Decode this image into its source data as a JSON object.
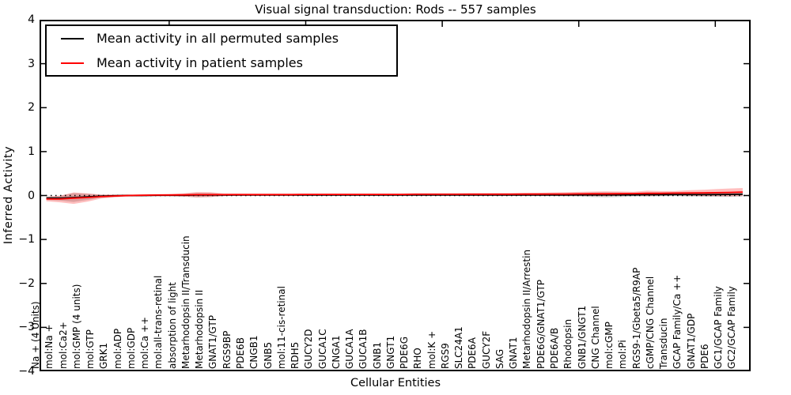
{
  "title": "Visual signal transduction: Rods -- 557 samples",
  "axes": {
    "ylabel": "Inferred Activity",
    "xlabel": "Cellular Entities",
    "yticks": [
      "4",
      "3",
      "2",
      "1",
      "0",
      "−1",
      "−2",
      "−3",
      "−4"
    ],
    "ylim": [
      -4,
      4
    ]
  },
  "legend": {
    "items": [
      {
        "label": "Mean activity in all permuted samples",
        "color": "#000000"
      },
      {
        "label": "Mean activity in patient samples",
        "color": "#ff0000"
      }
    ],
    "position": "upper left"
  },
  "colors": {
    "permuted_line": "#000000",
    "patient_line": "#ff0000",
    "permuted_band": "rgba(128,128,128,0.35)",
    "patient_band": "rgba(255,0,0,0.25)",
    "zero_line": "#000000",
    "background": "#ffffff"
  },
  "chart_data": {
    "type": "line",
    "title": "Visual signal transduction: Rods -- 557 samples",
    "xlabel": "Cellular Entities",
    "ylabel": "Inferred Activity",
    "ylim": [
      -4,
      4
    ],
    "grid": false,
    "zero_line_style": "dotted",
    "legend_position": "upper left",
    "categories": [
      "Na + (4 Units)",
      "mol:Na +",
      "mol:Ca2+",
      "mol:GMP (4 units)",
      "mol:GTP",
      "GRK1",
      "mol:ADP",
      "mol:GDP",
      "mol:Ca ++",
      "mol:all-trans-retinal",
      "absorption of light",
      "Metarhodopsin II/Transducin",
      "Metarhodopsin II",
      "GNAT1/GTP",
      "RGS9BP",
      "PDE6B",
      "CNGB1",
      "GNB5",
      "mol:11-cis-retinal",
      "RDH5",
      "GUCY2D",
      "GUCA1C",
      "CNGA1",
      "GUCA1A",
      "GUCA1B",
      "GNB1",
      "GNGT1",
      "PDE6G",
      "RHO",
      "mol:K +",
      "RGS9",
      "SLC24A1",
      "PDE6A",
      "GUCY2F",
      "SAG",
      "GNAT1",
      "Metarhodopsin II/Arrestin",
      "PDE6G/GNAT1/GTP",
      "PDE6A/B",
      "Rhodopsin",
      "GNB1/GNGT1",
      "CNG Channel",
      "mol:cGMP",
      "mol:Pi",
      "RGS9-1/Gbeta5/R9AP",
      "cGMP/CNG Channel",
      "Transducin",
      "GCAP Family/Ca ++",
      "GNAT1/GDP",
      "PDE6",
      "GC1/GCAP Family",
      "GC2/GCAP Family"
    ],
    "series": [
      {
        "name": "Mean activity in all permuted samples",
        "color": "#000000",
        "band_color": "rgba(128,128,128,0.35)",
        "values": [
          -0.06,
          -0.06,
          -0.045,
          -0.03,
          -0.015,
          -0.005,
          0,
          0,
          0.005,
          0.005,
          0.005,
          0.01,
          0.01,
          0.01,
          0.01,
          0.01,
          0.01,
          0.01,
          0.01,
          0.01,
          0.01,
          0.01,
          0.01,
          0.01,
          0.01,
          0.01,
          0.01,
          0.01,
          0.01,
          0.01,
          0.01,
          0.01,
          0.01,
          0.01,
          0.01,
          0.01,
          0.012,
          0.012,
          0.012,
          0.015,
          0.015,
          0.015,
          0.015,
          0.015,
          0.018,
          0.018,
          0.02,
          0.02,
          0.02,
          0.022,
          0.025,
          0.028
        ],
        "band_halfwidth": [
          0.04,
          0.055,
          0.1,
          0.07,
          0.035,
          0.025,
          0.02,
          0.02,
          0.02,
          0.02,
          0.03,
          0.05,
          0.045,
          0.025,
          0.018,
          0.015,
          0.015,
          0.015,
          0.015,
          0.015,
          0.015,
          0.015,
          0.015,
          0.015,
          0.015,
          0.015,
          0.015,
          0.015,
          0.015,
          0.015,
          0.015,
          0.015,
          0.015,
          0.018,
          0.018,
          0.02,
          0.025,
          0.025,
          0.03,
          0.035,
          0.05,
          0.055,
          0.05,
          0.035,
          0.04,
          0.035,
          0.03,
          0.04,
          0.045,
          0.05,
          0.055,
          0.05
        ]
      },
      {
        "name": "Mean activity in patient samples",
        "color": "#ff0000",
        "band_color": "rgba(255,0,0,0.25)",
        "values": [
          -0.08,
          -0.08,
          -0.06,
          -0.045,
          -0.025,
          -0.01,
          0,
          0.005,
          0.01,
          0.012,
          0.015,
          0.02,
          0.02,
          0.02,
          0.022,
          0.022,
          0.022,
          0.022,
          0.022,
          0.025,
          0.025,
          0.025,
          0.025,
          0.025,
          0.025,
          0.025,
          0.025,
          0.028,
          0.028,
          0.028,
          0.028,
          0.03,
          0.03,
          0.03,
          0.03,
          0.032,
          0.032,
          0.035,
          0.035,
          0.038,
          0.04,
          0.04,
          0.042,
          0.045,
          0.05,
          0.05,
          0.055,
          0.058,
          0.06,
          0.065,
          0.07,
          0.08
        ],
        "band_halfwidth": [
          0.05,
          0.075,
          0.13,
          0.095,
          0.045,
          0.03,
          0.022,
          0.022,
          0.022,
          0.022,
          0.035,
          0.06,
          0.055,
          0.03,
          0.022,
          0.02,
          0.02,
          0.02,
          0.02,
          0.02,
          0.02,
          0.02,
          0.02,
          0.02,
          0.02,
          0.02,
          0.02,
          0.02,
          0.02,
          0.02,
          0.02,
          0.02,
          0.02,
          0.022,
          0.022,
          0.025,
          0.03,
          0.035,
          0.04,
          0.045,
          0.05,
          0.055,
          0.05,
          0.04,
          0.06,
          0.05,
          0.045,
          0.06,
          0.07,
          0.08,
          0.09,
          0.09
        ]
      }
    ],
    "x_major_ticks_top": [
      10,
      20,
      30,
      40,
      50
    ]
  }
}
